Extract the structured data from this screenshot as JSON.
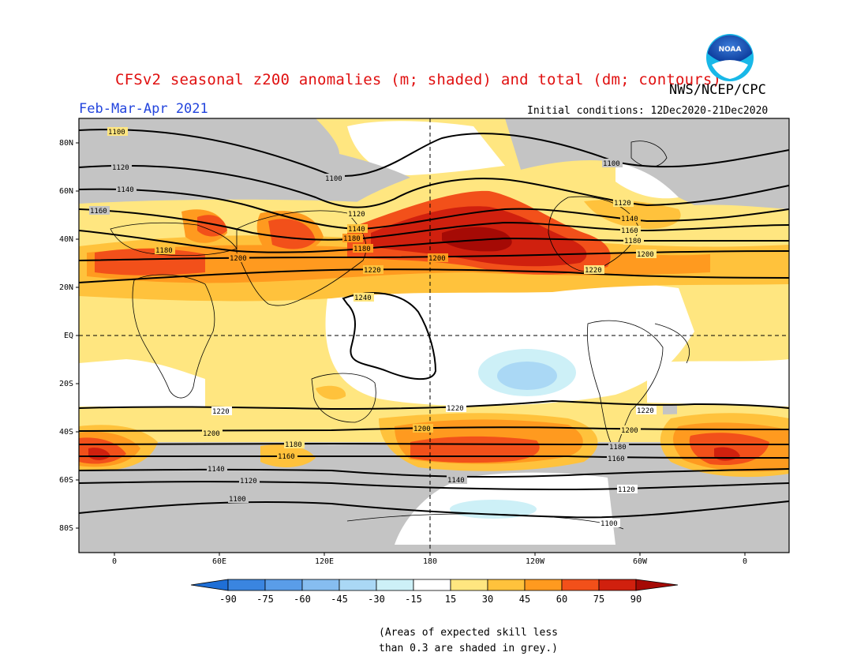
{
  "title": "CFSv2 seasonal z200 anomalies (m; shaded) and total (dm; contours)",
  "agency": "NWS/NCEP/CPC",
  "logo_text": "NOAA",
  "season": "Feb-Mar-Apr 2021",
  "initial_conditions": "Initial conditions: 12Dec2020-21Dec2020",
  "lat_labels": [
    "80N",
    "60N",
    "40N",
    "20N",
    "EQ",
    "20S",
    "40S",
    "60S",
    "80S"
  ],
  "lon_labels": [
    "0",
    "60E",
    "120E",
    "180",
    "120W",
    "60W",
    "0"
  ],
  "colorbar": {
    "ticks": [
      "-90",
      "-75",
      "-60",
      "-45",
      "-30",
      "-15",
      "15",
      "30",
      "45",
      "60",
      "75",
      "90"
    ],
    "colors": [
      "#1f6fd6",
      "#3a85e0",
      "#5a9de8",
      "#86bdf0",
      "#aad8f5",
      "#cdf0f7",
      "#ffffff",
      "#ffe680",
      "#ffc23c",
      "#ff9a1f",
      "#f2501a",
      "#d0200e",
      "#a50a05"
    ]
  },
  "contour_labels": [
    "1100",
    "1120",
    "1140",
    "1160",
    "1180",
    "1200",
    "1220",
    "1240"
  ],
  "colors": {
    "grey_mask": "#c4c4c4",
    "title_red": "#e01010",
    "season_blue": "#2244dd"
  },
  "footnote_line1": "(Areas of expected skill less",
  "footnote_line2": "than 0.3 are shaded in grey.)"
}
